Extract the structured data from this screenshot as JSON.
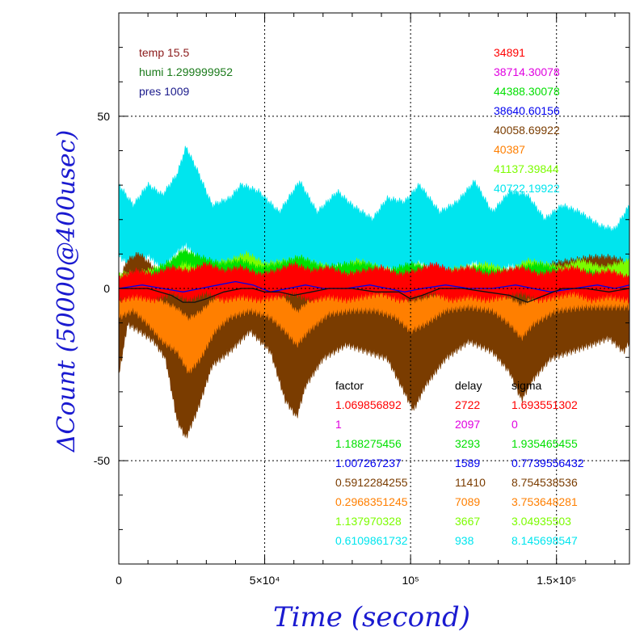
{
  "chart_data": {
    "type": "line",
    "xlabel": "Time (second)",
    "ylabel": "ΔCount (50000@400usec)",
    "xlim": [
      0,
      175000
    ],
    "ylim": [
      -80,
      80
    ],
    "x_ticks": [
      {
        "value": 0,
        "label": "0"
      },
      {
        "value": 50000,
        "label": "5×10⁴"
      },
      {
        "value": 100000,
        "label": "10⁵"
      },
      {
        "value": 150000,
        "label": "1.5×10⁵"
      }
    ],
    "y_ticks": [
      {
        "value": 50,
        "label": "50"
      },
      {
        "value": 0,
        "label": "0"
      },
      {
        "value": -50,
        "label": "-50"
      }
    ],
    "grid": true,
    "env": [
      {
        "label": "temp",
        "value": "15.5",
        "color": "#8b1a1a"
      },
      {
        "label": "humi",
        "value": "1.299999952",
        "color": "#1a7a1a"
      },
      {
        "label": "pres",
        "value": "1009",
        "color": "#1a1a8b"
      }
    ],
    "table_header": {
      "factor": "factor",
      "delay": "delay",
      "sigma": "sigma"
    },
    "series": [
      {
        "color": "#ff0000",
        "mean": "34891",
        "factor": "1.069856892",
        "delay": "2722",
        "sigma": "1.693551302"
      },
      {
        "color": "#e000e0",
        "mean": "38714.30078",
        "factor": "1",
        "delay": "2097",
        "sigma": "0"
      },
      {
        "color": "#00e000",
        "mean": "44388.30078",
        "factor": "1.188275456",
        "delay": "3293",
        "sigma": "1.935465455"
      },
      {
        "color": "#0000ee",
        "mean": "38640.60156",
        "factor": "1.007267237",
        "delay": "1589",
        "sigma": "0.7739556432"
      },
      {
        "color": "#7a3c00",
        "mean": "40058.69922",
        "factor": "0.5912284255",
        "delay": "11410",
        "sigma": "8.754538536"
      },
      {
        "color": "#ff7f00",
        "mean": "40387",
        "factor": "0.2968351245",
        "delay": "7089",
        "sigma": "3.753648281"
      },
      {
        "color": "#7cfc00",
        "mean": "41137.39844",
        "factor": "1.137970328",
        "delay": "3667",
        "sigma": "3.04935503"
      },
      {
        "color": "#00e5ee",
        "mean": "40722.19922",
        "factor": "0.6109861732",
        "delay": "938",
        "sigma": "8.145698547"
      }
    ],
    "bands": [
      {
        "name": "cyan",
        "color": "#00e5ee",
        "x": [
          0,
          5000,
          10000,
          15000,
          20000,
          23000,
          27000,
          32000,
          38000,
          42000,
          48000,
          55000,
          62000,
          68000,
          75000,
          80000,
          87000,
          92000,
          98000,
          103000,
          110000,
          116000,
          122000,
          128000,
          134000,
          140000,
          146000,
          152000,
          158000,
          165000,
          170000,
          175000
        ],
        "hi": [
          30,
          24,
          30,
          27,
          33,
          41,
          34,
          24,
          26,
          30,
          28,
          22,
          31,
          22,
          28,
          24,
          20,
          26,
          25,
          30,
          22,
          25,
          31,
          22,
          28,
          27,
          20,
          24,
          22,
          18,
          17,
          24
        ],
        "lo": [
          10,
          6,
          10,
          6,
          11,
          13,
          9,
          5,
          6,
          8,
          7,
          5,
          8,
          4,
          7,
          6,
          4,
          6,
          5,
          8,
          4,
          5,
          8,
          4,
          7,
          6,
          3,
          5,
          4,
          3,
          2,
          5
        ]
      },
      {
        "name": "brown",
        "color": "#7a3c00",
        "x": [
          0,
          3000,
          7000,
          12000,
          16000,
          20000,
          23000,
          27000,
          32000,
          38000,
          45000,
          52000,
          57000,
          61000,
          64000,
          70000,
          78000,
          85000,
          92000,
          98000,
          101000,
          105000,
          112000,
          120000,
          128000,
          134000,
          138000,
          142000,
          148000,
          155000,
          162000,
          168000,
          173000,
          175000
        ],
        "hi": [
          2,
          8,
          10,
          6,
          4,
          2,
          0,
          3,
          6,
          5,
          4,
          5,
          5,
          3,
          1,
          3,
          4,
          5,
          3,
          1,
          0,
          2,
          4,
          5,
          6,
          3,
          0,
          4,
          7,
          8,
          9,
          9,
          8,
          5
        ],
        "lo": [
          -25,
          -10,
          -12,
          -15,
          -20,
          -38,
          -43,
          -35,
          -22,
          -18,
          -12,
          -18,
          -32,
          -37,
          -28,
          -20,
          -16,
          -18,
          -20,
          -30,
          -35,
          -28,
          -20,
          -15,
          -18,
          -24,
          -32,
          -26,
          -20,
          -18,
          -16,
          -14,
          -18,
          -15
        ]
      },
      {
        "name": "orange",
        "color": "#ff7f00",
        "x": [
          0,
          5000,
          10000,
          15000,
          20000,
          24000,
          28000,
          33000,
          38000,
          45000,
          52000,
          57000,
          61000,
          65000,
          72000,
          80000,
          88000,
          95000,
          100000,
          105000,
          112000,
          120000,
          128000,
          134000,
          138000,
          142000,
          150000,
          160000,
          170000,
          175000
        ],
        "hi": [
          -4,
          -1,
          -2,
          -4,
          -6,
          -9,
          -7,
          -3,
          -1,
          0,
          -1,
          -3,
          -7,
          -4,
          -1,
          -1,
          -1,
          -2,
          -4,
          -3,
          -1,
          -1,
          -1,
          -3,
          -5,
          -3,
          -1,
          0,
          0,
          0
        ],
        "lo": [
          -8,
          -6,
          -10,
          -15,
          -18,
          -24,
          -20,
          -12,
          -8,
          -6,
          -8,
          -12,
          -16,
          -12,
          -7,
          -6,
          -6,
          -8,
          -12,
          -10,
          -6,
          -5,
          -6,
          -10,
          -14,
          -10,
          -6,
          -5,
          -5,
          -5
        ]
      },
      {
        "name": "lime",
        "color": "#7cfc00",
        "x": [
          0,
          10000,
          20000,
          25000,
          30000,
          38000,
          44000,
          50000,
          58000,
          62000,
          68000,
          75000,
          82000,
          90000,
          96000,
          102000,
          110000,
          118000,
          126000,
          134000,
          140000,
          146000,
          152000,
          158000,
          166000,
          175000
        ],
        "hi": [
          4,
          5,
          8,
          10,
          7,
          8,
          10,
          7,
          8,
          9,
          7,
          6,
          8,
          6,
          5,
          7,
          5,
          6,
          7,
          5,
          8,
          7,
          6,
          8,
          6,
          8
        ],
        "lo": [
          1,
          1,
          2,
          3,
          1,
          2,
          3,
          1,
          2,
          3,
          1,
          1,
          2,
          1,
          0,
          1,
          0,
          1,
          1,
          0,
          2,
          1,
          0,
          2,
          1,
          1
        ]
      },
      {
        "name": "green",
        "color": "#00e000",
        "x": [
          0,
          10000,
          18000,
          22000,
          28000,
          35000,
          42000,
          48000,
          55000,
          62000,
          70000,
          78000,
          85000,
          92000,
          100000,
          108000,
          115000,
          122000,
          130000,
          137000,
          144000,
          152000,
          160000,
          168000,
          175000
        ],
        "hi": [
          3,
          4,
          8,
          11,
          9,
          7,
          8,
          6,
          7,
          9,
          6,
          7,
          7,
          5,
          7,
          6,
          5,
          6,
          5,
          6,
          7,
          5,
          5,
          4,
          3
        ],
        "lo": [
          0,
          1,
          4,
          8,
          6,
          4,
          5,
          3,
          4,
          6,
          3,
          4,
          4,
          2,
          4,
          3,
          2,
          3,
          2,
          3,
          4,
          2,
          2,
          1,
          0
        ]
      },
      {
        "name": "red",
        "color": "#ff0000",
        "x": [
          0,
          6000,
          12000,
          18000,
          24000,
          30000,
          36000,
          42000,
          48000,
          54000,
          60000,
          66000,
          72000,
          78000,
          84000,
          90000,
          96000,
          102000,
          108000,
          114000,
          120000,
          126000,
          132000,
          138000,
          144000,
          150000,
          156000,
          162000,
          168000,
          175000
        ],
        "hi": [
          3,
          5,
          4,
          6,
          5,
          7,
          5,
          6,
          4,
          5,
          7,
          5,
          6,
          4,
          5,
          6,
          4,
          5,
          7,
          5,
          6,
          4,
          5,
          6,
          4,
          5,
          6,
          4,
          5,
          3
        ],
        "lo": [
          -3,
          -2,
          -3,
          -1,
          -3,
          -1,
          -3,
          -2,
          -3,
          -2,
          -1,
          -3,
          -2,
          -3,
          -2,
          -1,
          -3,
          -2,
          -1,
          -3,
          -2,
          -3,
          -2,
          -1,
          -3,
          -2,
          -1,
          -3,
          -2,
          -3
        ]
      }
    ],
    "lines": [
      {
        "name": "blue",
        "color": "#0000ee",
        "x": [
          0,
          8000,
          15000,
          22000,
          28000,
          34000,
          40000,
          46000,
          52000,
          58000,
          64000,
          70000,
          78000,
          86000,
          92000,
          98000,
          104000,
          112000,
          120000,
          128000,
          136000,
          142000,
          148000,
          156000,
          164000,
          170000,
          175000
        ],
        "y": [
          0,
          1,
          0,
          -1,
          0,
          1,
          2,
          1,
          -1,
          0,
          1,
          0,
          0,
          1,
          0,
          -1,
          0,
          1,
          0,
          0,
          1,
          0,
          -1,
          0,
          1,
          0,
          1
        ]
      },
      {
        "name": "black",
        "color": "#111111",
        "x": [
          0,
          10000,
          18000,
          22000,
          26000,
          30000,
          36000,
          42000,
          46000,
          50000,
          55000,
          60000,
          66000,
          72000,
          80000,
          88000,
          96000,
          100000,
          104000,
          110000,
          118000,
          126000,
          134000,
          140000,
          146000,
          152000,
          160000,
          168000,
          175000
        ],
        "y": [
          0,
          0,
          -2,
          -4,
          -4,
          -3,
          -1,
          0,
          0,
          -1,
          -1,
          -2,
          -1,
          0,
          0,
          -1,
          -1,
          -3,
          -2,
          0,
          0,
          -1,
          -2,
          -4,
          -2,
          0,
          0,
          -1,
          0
        ]
      }
    ]
  }
}
